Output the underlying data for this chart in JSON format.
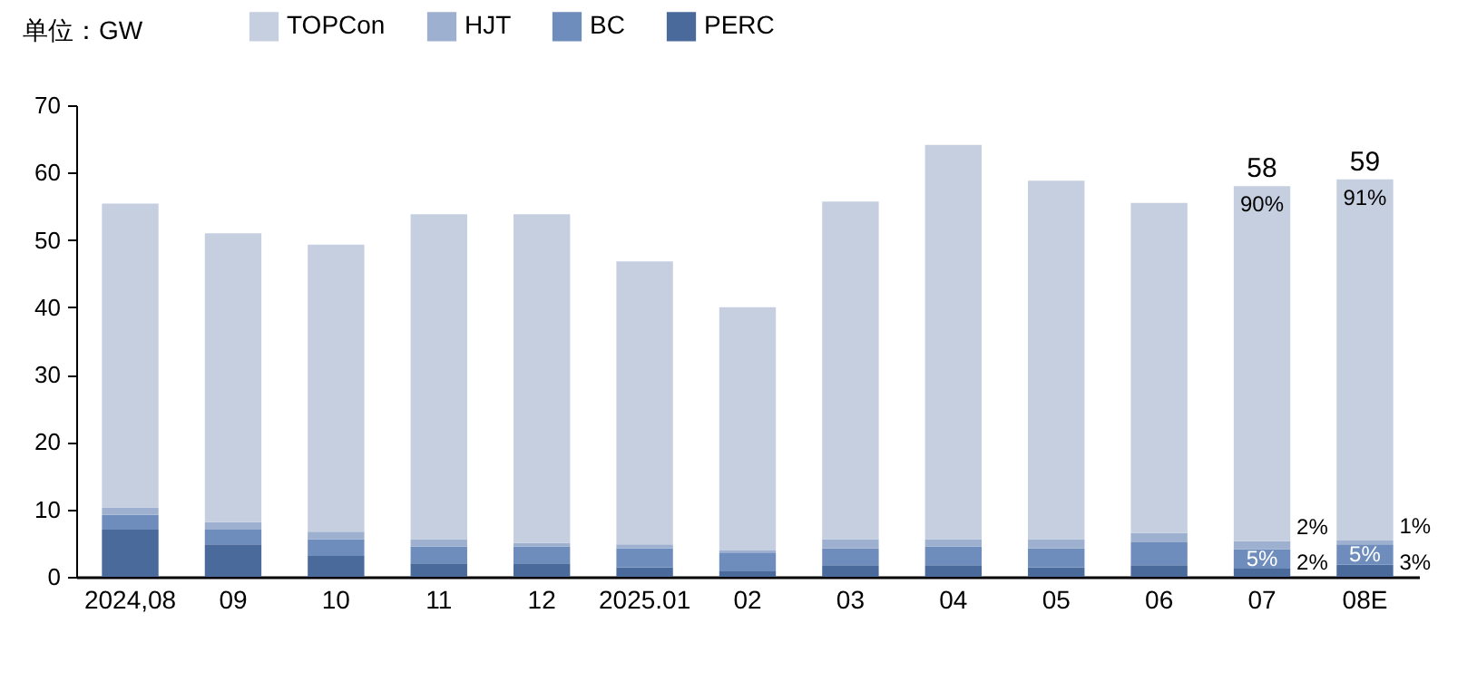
{
  "chart_data": {
    "type": "bar",
    "stacked": true,
    "ylabel": "单位：GW",
    "categories": [
      "2024,08",
      "09",
      "10",
      "11",
      "12",
      "2025.01",
      "02",
      "03",
      "04",
      "05",
      "06",
      "07",
      "08E"
    ],
    "series": [
      {
        "name": "PERC",
        "color": "#4a6a9b",
        "values": [
          7.0,
          4.8,
          3.1,
          2.0,
          2.0,
          1.4,
          0.8,
          1.7,
          1.7,
          1.4,
          1.7,
          1.2,
          1.8
        ]
      },
      {
        "name": "BC",
        "color": "#6e8dbd",
        "values": [
          2.2,
          2.2,
          2.5,
          2.5,
          2.5,
          2.8,
          2.8,
          2.5,
          2.8,
          2.8,
          3.4,
          2.9,
          3.0
        ]
      },
      {
        "name": "HJT",
        "color": "#9eb0cf",
        "values": [
          1.1,
          1.1,
          1.1,
          1.1,
          0.5,
          0.6,
          0.3,
          1.4,
          1.1,
          1.4,
          1.4,
          1.2,
          0.6
        ]
      },
      {
        "name": "TOPCon",
        "color": "#c5cfe0",
        "values": [
          45.1,
          42.9,
          42.6,
          48.2,
          48.8,
          42.0,
          36.1,
          50.1,
          58.5,
          53.2,
          49.0,
          52.7,
          53.6
        ]
      }
    ],
    "totals": [
      null,
      null,
      null,
      null,
      null,
      null,
      null,
      null,
      null,
      null,
      null,
      "58",
      "59"
    ],
    "annotations": [
      {
        "text": "90%",
        "x": "07",
        "y": 58.0
      },
      {
        "text": "5%",
        "x": "07",
        "y": 4.1
      },
      {
        "text": "2%",
        "x": "07",
        "y": 5.3
      },
      {
        "text": "2%",
        "x": "07",
        "y": 1.2
      },
      {
        "text": "91%",
        "x": "08E",
        "y": 59.0
      },
      {
        "text": "5%",
        "x": "08E",
        "y": 4.8
      },
      {
        "text": "1%",
        "x": "08E",
        "y": 5.4
      },
      {
        "text": "3%",
        "x": "08E",
        "y": 1.8
      }
    ],
    "ylim": [
      0,
      70
    ],
    "yticks": [
      0,
      10,
      20,
      30,
      40,
      50,
      60,
      70
    ],
    "grid": false,
    "legend": "top"
  }
}
